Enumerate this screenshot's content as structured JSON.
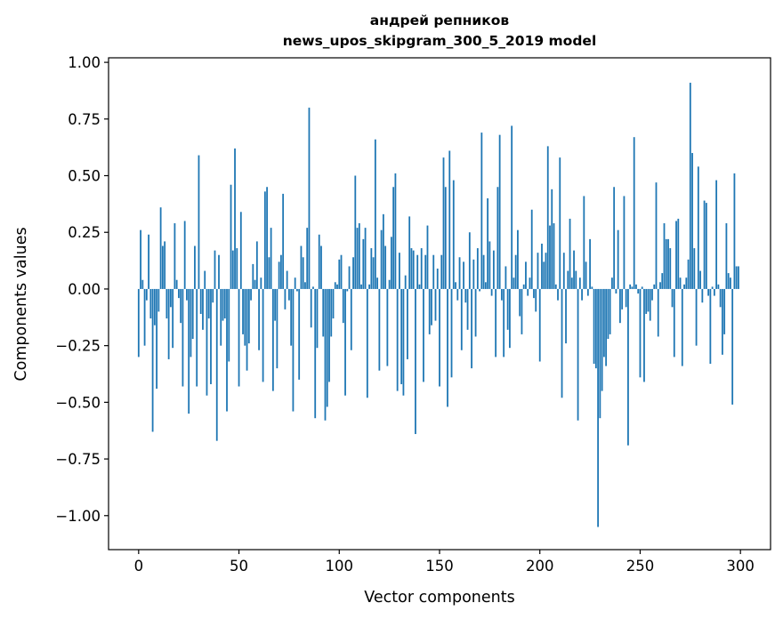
{
  "chart_data": {
    "type": "bar",
    "title": [
      "андрей репников",
      "news_upos_skipgram_300_5_2019 model"
    ],
    "xlabel": "Vector components",
    "ylabel": "Components values",
    "xlim": [
      -15,
      315
    ],
    "ylim": [
      -1.15,
      1.02
    ],
    "xticks": [
      0,
      50,
      100,
      150,
      200,
      250,
      300
    ],
    "xtick_labels": [
      "0",
      "50",
      "100",
      "150",
      "200",
      "250",
      "300"
    ],
    "yticks": [
      1.0,
      0.75,
      0.5,
      0.25,
      0.0,
      -0.25,
      -0.5,
      -0.75,
      -1.0
    ],
    "ytick_labels": [
      "1.00",
      "0.75",
      "0.50",
      "0.25",
      "0.00",
      "−0.25",
      "−0.50",
      "−0.75",
      "−1.00"
    ],
    "grid": false,
    "color": "#1f77b4",
    "values": [
      -0.3,
      0.26,
      0.04,
      -0.25,
      -0.05,
      0.24,
      -0.13,
      -0.63,
      -0.16,
      -0.44,
      -0.1,
      0.36,
      0.19,
      0.21,
      -0.13,
      -0.31,
      -0.08,
      -0.26,
      0.29,
      0.04,
      -0.04,
      -0.15,
      -0.43,
      0.3,
      -0.05,
      -0.55,
      -0.3,
      -0.22,
      0.19,
      -0.43,
      0.59,
      -0.11,
      -0.18,
      0.08,
      -0.47,
      -0.13,
      -0.42,
      -0.06,
      0.17,
      -0.67,
      0.15,
      -0.25,
      -0.14,
      -0.13,
      -0.54,
      -0.32,
      0.46,
      0.17,
      0.62,
      0.18,
      -0.43,
      0.34,
      -0.2,
      -0.25,
      -0.36,
      -0.24,
      -0.05,
      0.11,
      0.04,
      0.21,
      -0.27,
      0.05,
      -0.41,
      0.43,
      0.45,
      0.14,
      0.27,
      -0.45,
      -0.14,
      -0.35,
      0.12,
      0.15,
      0.42,
      -0.09,
      0.08,
      -0.05,
      -0.25,
      -0.54,
      0.05,
      -0.01,
      -0.4,
      0.19,
      0.14,
      0.03,
      0.27,
      0.8,
      -0.17,
      0.01,
      -0.57,
      -0.26,
      0.24,
      0.19,
      -0.21,
      -0.58,
      -0.52,
      -0.41,
      -0.21,
      -0.13,
      0.03,
      0.02,
      0.13,
      0.15,
      -0.15,
      -0.47,
      -0.01,
      0.1,
      -0.27,
      0.14,
      0.5,
      0.27,
      0.29,
      0.02,
      0.22,
      0.27,
      -0.48,
      0.02,
      0.18,
      0.14,
      0.66,
      0.05,
      -0.36,
      0.26,
      0.33,
      0.19,
      -0.34,
      0.04,
      0.23,
      0.45,
      0.51,
      -0.45,
      0.16,
      -0.42,
      -0.47,
      0.06,
      -0.31,
      0.32,
      0.18,
      0.17,
      -0.64,
      0.15,
      0.02,
      0.18,
      -0.41,
      0.15,
      0.28,
      -0.2,
      -0.16,
      0.15,
      -0.14,
      0.09,
      -0.43,
      0.15,
      0.58,
      0.45,
      -0.52,
      0.61,
      -0.39,
      0.48,
      0.03,
      -0.05,
      0.14,
      -0.27,
      0.12,
      -0.06,
      -0.18,
      0.25,
      -0.35,
      0.13,
      -0.21,
      0.18,
      -0.01,
      0.69,
      0.15,
      0.03,
      0.4,
      0.21,
      -0.03,
      0.17,
      -0.3,
      0.45,
      0.68,
      -0.05,
      -0.3,
      0.1,
      -0.18,
      -0.26,
      0.72,
      0.05,
      0.15,
      0.26,
      -0.12,
      -0.2,
      0.02,
      0.12,
      -0.03,
      0.05,
      0.35,
      -0.04,
      -0.1,
      0.16,
      -0.32,
      0.2,
      0.12,
      0.16,
      0.63,
      0.28,
      0.44,
      0.29,
      0.02,
      -0.05,
      0.58,
      -0.48,
      0.16,
      -0.24,
      0.08,
      0.31,
      0.05,
      0.17,
      0.08,
      -0.58,
      0.05,
      -0.05,
      0.41,
      0.12,
      -0.03,
      0.22,
      0.01,
      -0.33,
      -0.35,
      -1.05,
      -0.57,
      -0.45,
      -0.3,
      -0.34,
      -0.22,
      -0.2,
      0.05,
      0.45,
      -0.02,
      0.26,
      -0.15,
      -0.09,
      0.41,
      -0.08,
      -0.69,
      0.02,
      0.01,
      0.67,
      0.02,
      -0.02,
      -0.39,
      0.01,
      -0.41,
      -0.11,
      -0.1,
      -0.14,
      -0.05,
      0.02,
      0.47,
      -0.21,
      0.03,
      0.07,
      0.29,
      0.22,
      0.22,
      0.18,
      -0.08,
      -0.3,
      0.3,
      0.31,
      0.05,
      -0.34,
      0.02,
      0.05,
      0.13,
      0.91,
      0.6,
      0.18,
      -0.25,
      0.54,
      0.08,
      -0.06,
      0.39,
      0.38,
      -0.03,
      -0.33,
      0.01,
      -0.03,
      0.48,
      0.02,
      -0.08,
      -0.29,
      -0.2,
      0.29,
      0.07,
      0.05,
      -0.51,
      0.51,
      0.1,
      0.1
    ]
  }
}
